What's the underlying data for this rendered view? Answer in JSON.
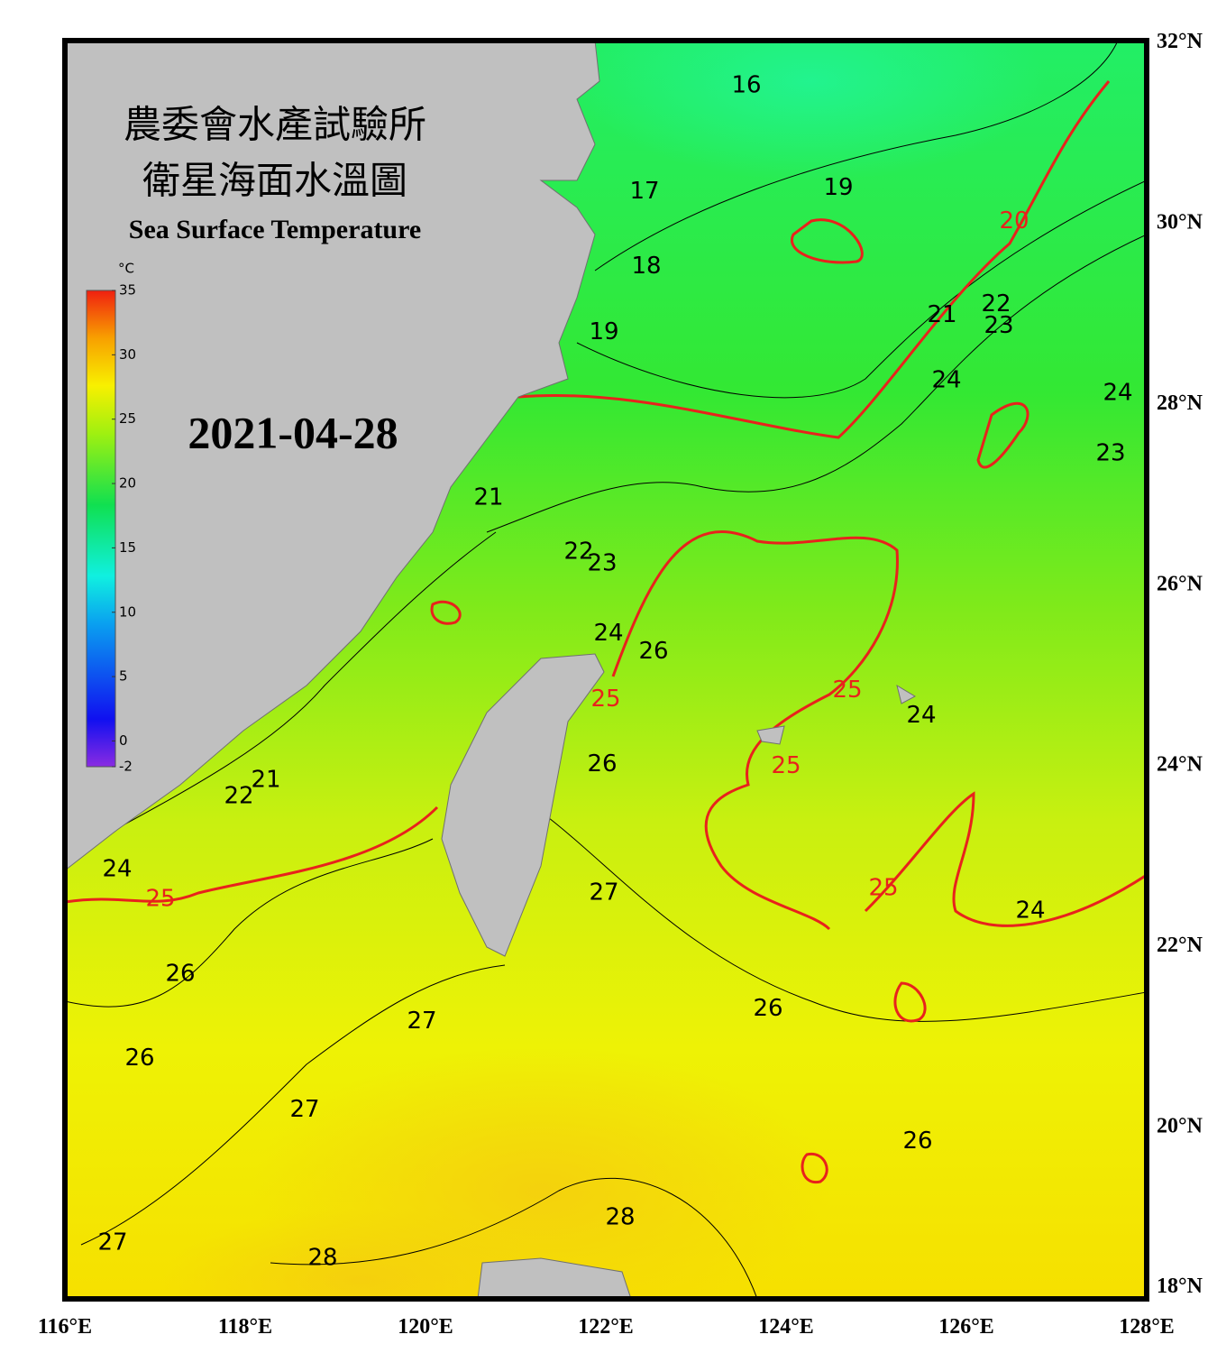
{
  "map": {
    "title_zh_1": "農委會水產試驗所",
    "title_zh_2": "衛星海面水溫圖",
    "title_en": "Sea Surface Temperature",
    "date": "2021-04-28",
    "lonlim": [
      116,
      128
    ],
    "latlim": [
      18,
      32
    ],
    "lonticks": [
      {
        "value": 116,
        "label": "116°E"
      },
      {
        "value": 118,
        "label": "118°E"
      },
      {
        "value": 120,
        "label": "120°E"
      },
      {
        "value": 122,
        "label": "122°E"
      },
      {
        "value": 124,
        "label": "124°E"
      },
      {
        "value": 126,
        "label": "126°E"
      },
      {
        "value": 128,
        "label": "128°E"
      }
    ],
    "latticks": [
      {
        "value": 18,
        "label": "18°N"
      },
      {
        "value": 20,
        "label": "20°N"
      },
      {
        "value": 22,
        "label": "22°N"
      },
      {
        "value": 24,
        "label": "24°N"
      },
      {
        "value": 26,
        "label": "26°N"
      },
      {
        "value": 28,
        "label": "28°N"
      },
      {
        "value": 30,
        "label": "30°N"
      },
      {
        "value": 32,
        "label": "32°N"
      }
    ],
    "colorbar": {
      "unit": "°C",
      "lim": [
        -2,
        35
      ],
      "ticks": [
        35,
        30,
        25,
        20,
        15,
        10,
        5,
        0,
        -2
      ]
    },
    "contour_labels": [
      {
        "text": "16",
        "lon": 123.56,
        "lat": 31.5,
        "color": "#000000"
      },
      {
        "text": "17",
        "lon": 122.43,
        "lat": 30.33,
        "color": "#000000"
      },
      {
        "text": "19",
        "lon": 124.58,
        "lat": 30.37,
        "color": "#000000"
      },
      {
        "text": "20",
        "lon": 126.53,
        "lat": 30.0,
        "color": "#e8221c"
      },
      {
        "text": "18",
        "lon": 122.45,
        "lat": 29.5,
        "color": "#000000"
      },
      {
        "text": "21",
        "lon": 125.73,
        "lat": 28.96,
        "color": "#000000"
      },
      {
        "text": "22",
        "lon": 126.33,
        "lat": 29.08,
        "color": "#000000"
      },
      {
        "text": "23",
        "lon": 126.36,
        "lat": 28.84,
        "color": "#000000"
      },
      {
        "text": "19",
        "lon": 121.98,
        "lat": 28.77,
        "color": "#000000"
      },
      {
        "text": "24",
        "lon": 125.78,
        "lat": 28.24,
        "color": "#000000"
      },
      {
        "text": "24",
        "lon": 127.68,
        "lat": 28.1,
        "color": "#000000"
      },
      {
        "text": "23",
        "lon": 127.6,
        "lat": 27.43,
        "color": "#000000"
      },
      {
        "text": "21",
        "lon": 120.7,
        "lat": 26.94,
        "color": "#000000"
      },
      {
        "text": "22",
        "lon": 121.7,
        "lat": 26.34,
        "color": "#000000"
      },
      {
        "text": "23",
        "lon": 121.96,
        "lat": 26.21,
        "color": "#000000"
      },
      {
        "text": "24",
        "lon": 122.03,
        "lat": 25.44,
        "color": "#000000"
      },
      {
        "text": "26",
        "lon": 122.53,
        "lat": 25.24,
        "color": "#000000"
      },
      {
        "text": "25",
        "lon": 122.0,
        "lat": 24.71,
        "color": "#e8221c"
      },
      {
        "text": "25",
        "lon": 124.68,
        "lat": 24.81,
        "color": "#e8221c"
      },
      {
        "text": "24",
        "lon": 125.5,
        "lat": 24.53,
        "color": "#000000"
      },
      {
        "text": "26",
        "lon": 121.96,
        "lat": 23.99,
        "color": "#000000"
      },
      {
        "text": "25",
        "lon": 124.0,
        "lat": 23.97,
        "color": "#e8221c"
      },
      {
        "text": "21",
        "lon": 118.23,
        "lat": 23.82,
        "color": "#000000"
      },
      {
        "text": "22",
        "lon": 117.93,
        "lat": 23.64,
        "color": "#000000"
      },
      {
        "text": "24",
        "lon": 116.58,
        "lat": 22.83,
        "color": "#000000"
      },
      {
        "text": "25",
        "lon": 117.06,
        "lat": 22.5,
        "color": "#e8221c"
      },
      {
        "text": "25",
        "lon": 125.08,
        "lat": 22.62,
        "color": "#e8221c"
      },
      {
        "text": "27",
        "lon": 121.98,
        "lat": 22.57,
        "color": "#000000"
      },
      {
        "text": "24",
        "lon": 126.71,
        "lat": 22.37,
        "color": "#000000"
      },
      {
        "text": "26",
        "lon": 117.28,
        "lat": 21.67,
        "color": "#000000"
      },
      {
        "text": "26",
        "lon": 123.8,
        "lat": 21.29,
        "color": "#000000"
      },
      {
        "text": "27",
        "lon": 119.96,
        "lat": 21.15,
        "color": "#000000"
      },
      {
        "text": "26",
        "lon": 116.83,
        "lat": 20.74,
        "color": "#000000"
      },
      {
        "text": "27",
        "lon": 118.66,
        "lat": 20.17,
        "color": "#000000"
      },
      {
        "text": "26",
        "lon": 125.46,
        "lat": 19.82,
        "color": "#000000"
      },
      {
        "text": "28",
        "lon": 122.16,
        "lat": 18.98,
        "color": "#000000"
      },
      {
        "text": "27",
        "lon": 116.53,
        "lat": 18.7,
        "color": "#000000"
      },
      {
        "text": "28",
        "lon": 118.86,
        "lat": 18.53,
        "color": "#000000"
      }
    ]
  }
}
